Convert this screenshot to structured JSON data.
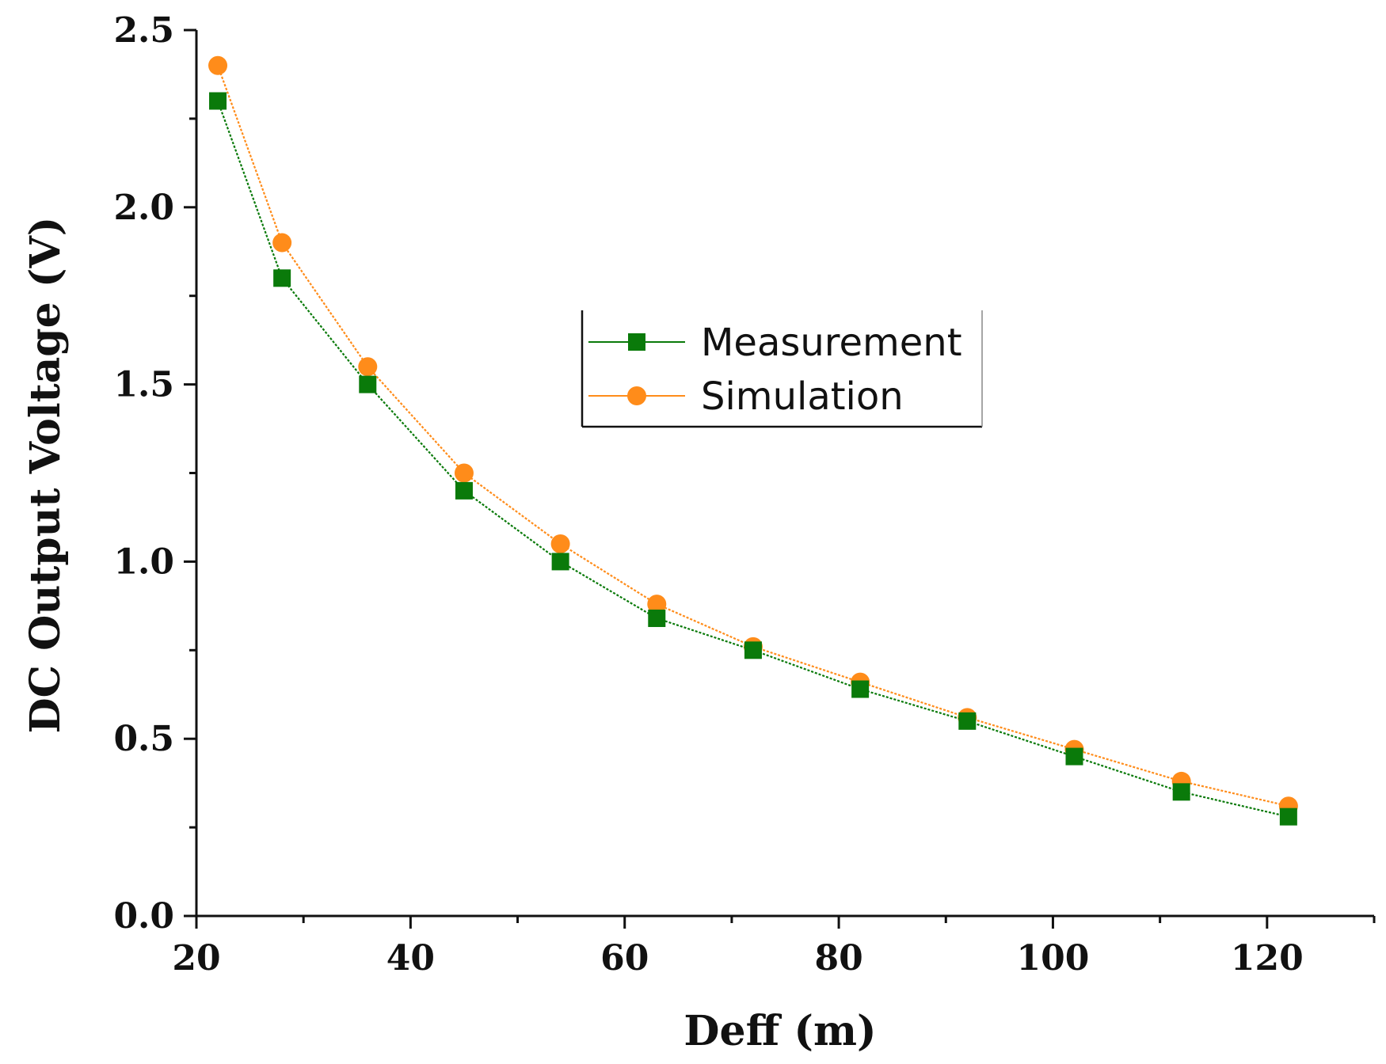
{
  "chart_data": {
    "type": "line",
    "title": "",
    "xlabel": "Deff (m)",
    "ylabel": "DC Output Voltage (V)",
    "xlim": [
      20,
      130
    ],
    "ylim": [
      0,
      2.5
    ],
    "x_ticks": [
      20,
      40,
      60,
      80,
      100,
      120
    ],
    "x_tick_labels": [
      "20",
      "40",
      "60",
      "80",
      "100",
      "120"
    ],
    "x_minor_ticks": [
      30,
      50,
      70,
      90,
      110,
      130
    ],
    "y_ticks": [
      0,
      0.5,
      1.0,
      1.5,
      2.0,
      2.5
    ],
    "y_tick_labels": [
      "0.0",
      "0.5",
      "1.0",
      "1.5",
      "2.0",
      "2.5"
    ],
    "y_minor_ticks": [
      0.25,
      0.75,
      1.25,
      1.75,
      2.25
    ],
    "grid": false,
    "legend_position": "center-right",
    "series": [
      {
        "name": "Measurement",
        "marker": "square",
        "color": "#0a7a0a",
        "line_style": "dotted",
        "x": [
          22,
          28,
          36,
          45,
          54,
          63,
          72,
          82,
          92,
          102,
          112,
          122
        ],
        "y": [
          2.3,
          1.8,
          1.5,
          1.2,
          1.0,
          0.84,
          0.75,
          0.64,
          0.55,
          0.45,
          0.35,
          0.28
        ]
      },
      {
        "name": "Simulation",
        "marker": "circle",
        "color": "#ff8c1a",
        "line_style": "dotted",
        "x": [
          22,
          28,
          36,
          45,
          54,
          63,
          72,
          82,
          92,
          102,
          112,
          122
        ],
        "y": [
          2.4,
          1.9,
          1.55,
          1.25,
          1.05,
          0.88,
          0.76,
          0.66,
          0.56,
          0.47,
          0.38,
          0.31
        ]
      }
    ]
  }
}
